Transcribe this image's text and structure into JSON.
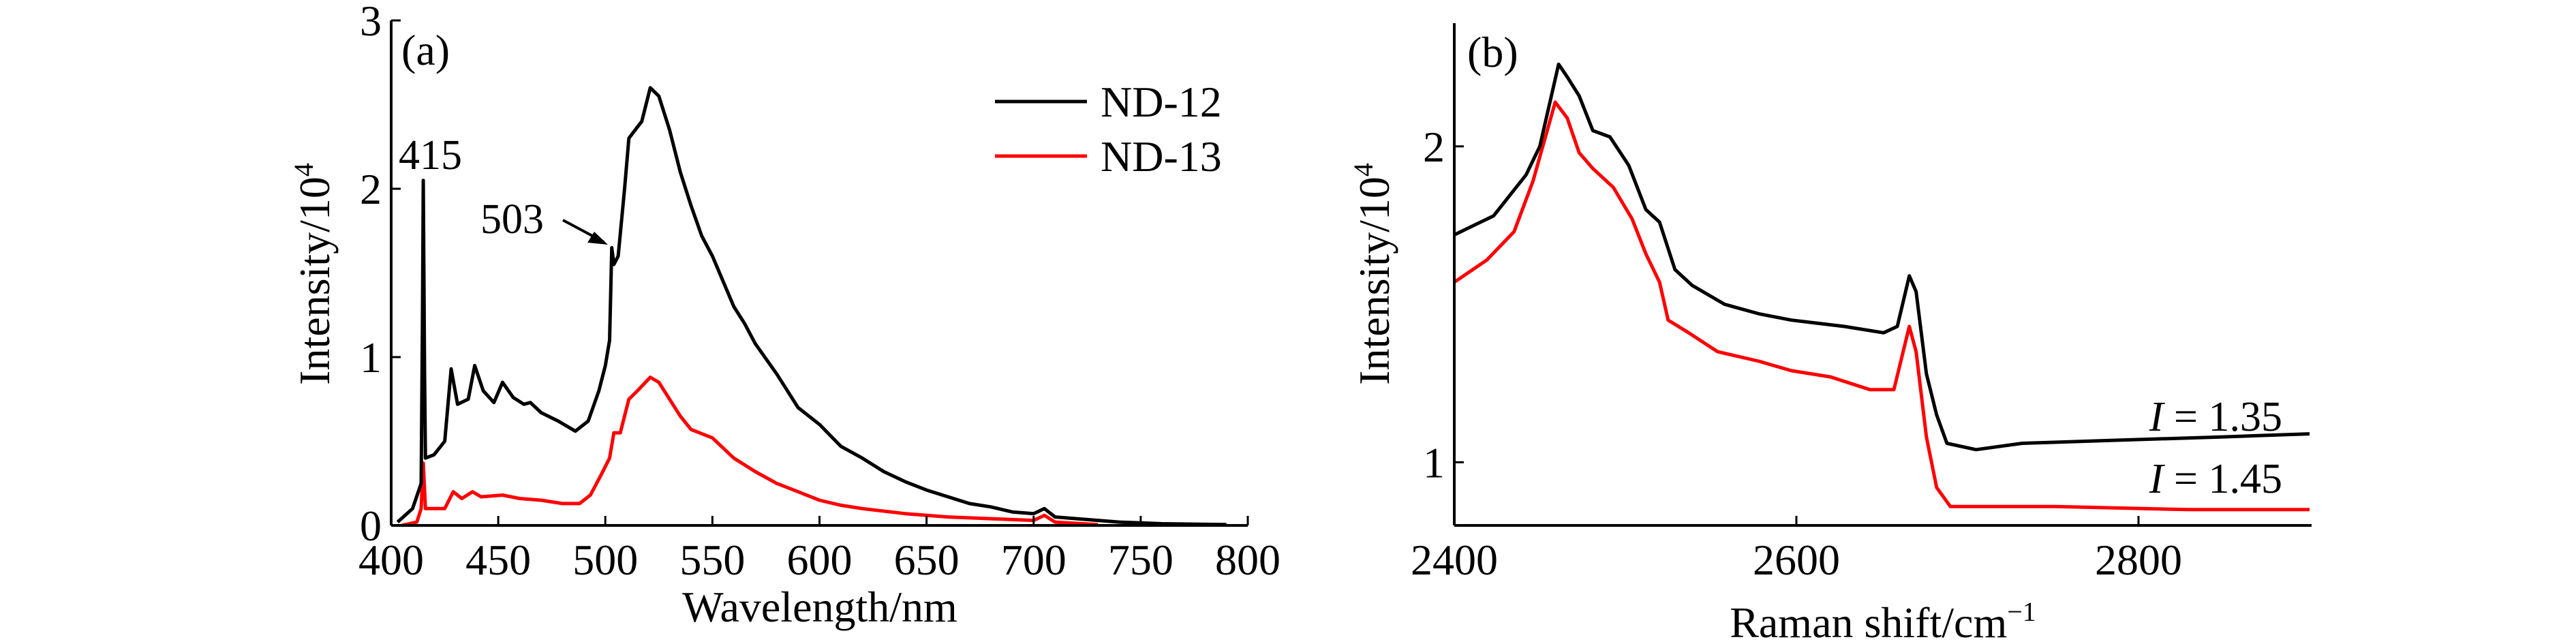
{
  "chart_data": [
    {
      "type": "line",
      "panel_label": "(a)",
      "xlabel": "Wavelength/nm",
      "ylabel": "Intensity/10",
      "ylabel_sup": "4",
      "xlim": [
        400,
        800
      ],
      "ylim": [
        0,
        3
      ],
      "xticks": [
        "400",
        "450",
        "500",
        "550",
        "600",
        "650",
        "700",
        "750",
        "800"
      ],
      "yticks": [
        "0",
        "1",
        "2",
        "3"
      ],
      "legend_position": "top-right",
      "annotations": [
        {
          "text": "415",
          "x": 415
        },
        {
          "text": "503",
          "x": 503
        }
      ],
      "series": [
        {
          "name": "ND-12",
          "color": "#000000",
          "points": [
            [
              403,
              0.02
            ],
            [
              410,
              0.1
            ],
            [
              414,
              0.25
            ],
            [
              414.6,
              1.2
            ],
            [
              415,
              2.05
            ],
            [
              415.6,
              0.9
            ],
            [
              416,
              0.4
            ],
            [
              420,
              0.42
            ],
            [
              425,
              0.5
            ],
            [
              428,
              0.93
            ],
            [
              431,
              0.72
            ],
            [
              436,
              0.75
            ],
            [
              439,
              0.95
            ],
            [
              443,
              0.8
            ],
            [
              448,
              0.73
            ],
            [
              452,
              0.85
            ],
            [
              457,
              0.76
            ],
            [
              462,
              0.72
            ],
            [
              465,
              0.73
            ],
            [
              470,
              0.67
            ],
            [
              478,
              0.62
            ],
            [
              486,
              0.56
            ],
            [
              492,
              0.62
            ],
            [
              497,
              0.8
            ],
            [
              500,
              0.95
            ],
            [
              502,
              1.1
            ],
            [
              503,
              1.65
            ],
            [
              504,
              1.55
            ],
            [
              506,
              1.6
            ],
            [
              509,
              2.0
            ],
            [
              511,
              2.3
            ],
            [
              514,
              2.35
            ],
            [
              517,
              2.4
            ],
            [
              521,
              2.6
            ],
            [
              525,
              2.55
            ],
            [
              530,
              2.35
            ],
            [
              535,
              2.1
            ],
            [
              540,
              1.9
            ],
            [
              545,
              1.72
            ],
            [
              550,
              1.6
            ],
            [
              555,
              1.45
            ],
            [
              560,
              1.3
            ],
            [
              565,
              1.2
            ],
            [
              570,
              1.08
            ],
            [
              580,
              0.9
            ],
            [
              590,
              0.7
            ],
            [
              600,
              0.6
            ],
            [
              610,
              0.47
            ],
            [
              620,
              0.4
            ],
            [
              630,
              0.32
            ],
            [
              640,
              0.26
            ],
            [
              650,
              0.21
            ],
            [
              660,
              0.17
            ],
            [
              670,
              0.13
            ],
            [
              680,
              0.11
            ],
            [
              690,
              0.08
            ],
            [
              700,
              0.07
            ],
            [
              705,
              0.1
            ],
            [
              710,
              0.05
            ],
            [
              720,
              0.04
            ],
            [
              740,
              0.02
            ],
            [
              760,
              0.01
            ],
            [
              790,
              0.005
            ]
          ]
        },
        {
          "name": "ND-13",
          "color": "#ff0000",
          "points": [
            [
              405,
              0.0
            ],
            [
              412,
              0.02
            ],
            [
              414,
              0.1
            ],
            [
              415,
              0.37
            ],
            [
              416,
              0.1
            ],
            [
              425,
              0.1
            ],
            [
              429,
              0.2
            ],
            [
              433,
              0.16
            ],
            [
              438,
              0.2
            ],
            [
              442,
              0.17
            ],
            [
              452,
              0.18
            ],
            [
              460,
              0.16
            ],
            [
              470,
              0.15
            ],
            [
              480,
              0.13
            ],
            [
              488,
              0.13
            ],
            [
              493,
              0.18
            ],
            [
              498,
              0.3
            ],
            [
              502,
              0.4
            ],
            [
              504,
              0.55
            ],
            [
              507,
              0.55
            ],
            [
              511,
              0.75
            ],
            [
              515,
              0.8
            ],
            [
              521,
              0.88
            ],
            [
              525,
              0.85
            ],
            [
              530,
              0.75
            ],
            [
              535,
              0.65
            ],
            [
              540,
              0.57
            ],
            [
              550,
              0.52
            ],
            [
              560,
              0.4
            ],
            [
              570,
              0.32
            ],
            [
              580,
              0.25
            ],
            [
              590,
              0.2
            ],
            [
              600,
              0.15
            ],
            [
              610,
              0.12
            ],
            [
              620,
              0.1
            ],
            [
              640,
              0.07
            ],
            [
              660,
              0.05
            ],
            [
              680,
              0.04
            ],
            [
              700,
              0.03
            ],
            [
              705,
              0.06
            ],
            [
              710,
              0.02
            ],
            [
              730,
              0.005
            ]
          ]
        }
      ]
    },
    {
      "type": "line",
      "panel_label": "(b)",
      "xlabel": "Raman shift/cm",
      "xlabel_sup": "−1",
      "ylabel": "Intensity/10",
      "ylabel_sup": "4",
      "xlim": [
        2400,
        2900
      ],
      "ylim": [
        0.8,
        2.39
      ],
      "xticks": [
        "2400",
        "2600",
        "2800"
      ],
      "xtick_values": [
        2400,
        2600,
        2800
      ],
      "yticks": [
        "1",
        "2"
      ],
      "ytick_values": [
        1,
        2
      ],
      "annotations": [
        {
          "italic": "I",
          "text": " = 1.35",
          "series": "ND-12"
        },
        {
          "italic": "I",
          "text": " = 1.45",
          "series": "ND-13"
        }
      ],
      "series": [
        {
          "name": "ND-12",
          "color": "#000000",
          "points": [
            [
              2400,
              1.72
            ],
            [
              2423,
              1.78
            ],
            [
              2442,
              1.91
            ],
            [
              2450,
              2.0
            ],
            [
              2461,
              2.26
            ],
            [
              2466,
              2.22
            ],
            [
              2473,
              2.16
            ],
            [
              2481,
              2.05
            ],
            [
              2491,
              2.03
            ],
            [
              2502,
              1.94
            ],
            [
              2512,
              1.8
            ],
            [
              2520,
              1.76
            ],
            [
              2529,
              1.61
            ],
            [
              2539,
              1.56
            ],
            [
              2558,
              1.5
            ],
            [
              2578,
              1.47
            ],
            [
              2597,
              1.45
            ],
            [
              2628,
              1.43
            ],
            [
              2651,
              1.41
            ],
            [
              2659,
              1.43
            ],
            [
              2666,
              1.59
            ],
            [
              2670,
              1.54
            ],
            [
              2676,
              1.28
            ],
            [
              2682,
              1.15
            ],
            [
              2688,
              1.06
            ],
            [
              2705,
              1.04
            ],
            [
              2732,
              1.06
            ],
            [
              2790,
              1.07
            ],
            [
              2848,
              1.08
            ],
            [
              2900,
              1.09
            ]
          ]
        },
        {
          "name": "ND-13",
          "color": "#ff0000",
          "points": [
            [
              2400,
              1.57
            ],
            [
              2419,
              1.64
            ],
            [
              2435,
              1.73
            ],
            [
              2446,
              1.89
            ],
            [
              2459,
              2.14
            ],
            [
              2466,
              2.09
            ],
            [
              2473,
              1.98
            ],
            [
              2481,
              1.93
            ],
            [
              2493,
              1.87
            ],
            [
              2504,
              1.77
            ],
            [
              2512,
              1.66
            ],
            [
              2520,
              1.57
            ],
            [
              2525,
              1.45
            ],
            [
              2537,
              1.41
            ],
            [
              2554,
              1.35
            ],
            [
              2578,
              1.32
            ],
            [
              2597,
              1.29
            ],
            [
              2620,
              1.27
            ],
            [
              2643,
              1.23
            ],
            [
              2657,
              1.23
            ],
            [
              2666,
              1.43
            ],
            [
              2670,
              1.35
            ],
            [
              2676,
              1.08
            ],
            [
              2682,
              0.92
            ],
            [
              2690,
              0.86
            ],
            [
              2751,
              0.86
            ],
            [
              2829,
              0.85
            ],
            [
              2900,
              0.85
            ]
          ]
        }
      ]
    }
  ]
}
